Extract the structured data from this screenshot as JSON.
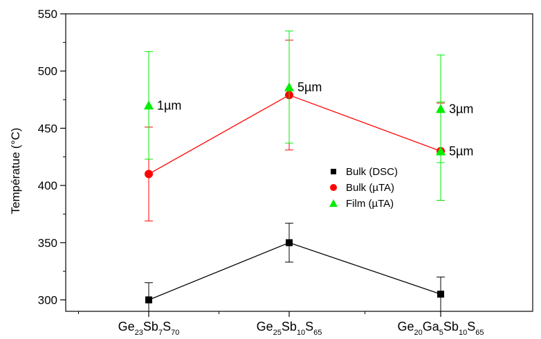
{
  "chart_data": {
    "type": "line",
    "ylabel": "Températue (°C)",
    "xlabel": "",
    "ylim": [
      290,
      550
    ],
    "yticks": [
      300,
      350,
      400,
      450,
      500,
      550
    ],
    "categories": [
      {
        "parts": [
          {
            "t": "Ge",
            "sub": false
          },
          {
            "t": "23",
            "sub": true
          },
          {
            "t": "Sb",
            "sub": false
          },
          {
            "t": "7",
            "sub": true
          },
          {
            "t": "S",
            "sub": false
          },
          {
            "t": "70",
            "sub": true
          }
        ]
      },
      {
        "parts": [
          {
            "t": "Ge",
            "sub": false
          },
          {
            "t": "25",
            "sub": true
          },
          {
            "t": "Sb",
            "sub": false
          },
          {
            "t": "10",
            "sub": true
          },
          {
            "t": "S",
            "sub": false
          },
          {
            "t": "65",
            "sub": true
          }
        ]
      },
      {
        "parts": [
          {
            "t": "Ge",
            "sub": false
          },
          {
            "t": "20",
            "sub": true
          },
          {
            "t": "Ga",
            "sub": false
          },
          {
            "t": "5",
            "sub": true
          },
          {
            "t": "Sb",
            "sub": false
          },
          {
            "t": "10",
            "sub": true
          },
          {
            "t": "S",
            "sub": false
          },
          {
            "t": "65",
            "sub": true
          }
        ]
      }
    ],
    "series": [
      {
        "name": "Bulk (DSC)",
        "color": "#000000",
        "marker": "square",
        "connected": true,
        "points": [
          {
            "x": 0,
            "y": 300,
            "lo": 290,
            "hi": 315
          },
          {
            "x": 1,
            "y": 350,
            "lo": 333,
            "hi": 367
          },
          {
            "x": 2,
            "y": 305,
            "lo": 290,
            "hi": 320
          }
        ]
      },
      {
        "name": "Bulk (µTA)",
        "color": "#ff0000",
        "marker": "circle",
        "connected": true,
        "points": [
          {
            "x": 0,
            "y": 410,
            "lo": 369,
            "hi": 451
          },
          {
            "x": 1,
            "y": 479,
            "lo": 431,
            "hi": 527
          },
          {
            "x": 2,
            "y": 430,
            "lo": 387,
            "hi": 472
          }
        ]
      },
      {
        "name": "Film (µTA)",
        "color": "#00ee00",
        "marker": "triangle",
        "connected": false,
        "points": [
          {
            "x": 0,
            "y": 470,
            "lo": 423,
            "hi": 517
          },
          {
            "x": 1,
            "y": 486,
            "lo": 437,
            "hi": 535
          },
          {
            "x": 2,
            "y": 467,
            "lo": 420,
            "hi": 514
          },
          {
            "x": 2,
            "y": 430,
            "lo": 387,
            "hi": 473
          }
        ]
      }
    ],
    "annotations": [
      {
        "text": "1µm",
        "x": 0,
        "y": 470
      },
      {
        "text": "5µm",
        "x": 1,
        "y": 486
      },
      {
        "text": "3µm",
        "x": 2,
        "y": 467
      },
      {
        "text": "5µm",
        "x": 2,
        "y": 430
      }
    ],
    "legend": {
      "position": "center-right"
    }
  }
}
